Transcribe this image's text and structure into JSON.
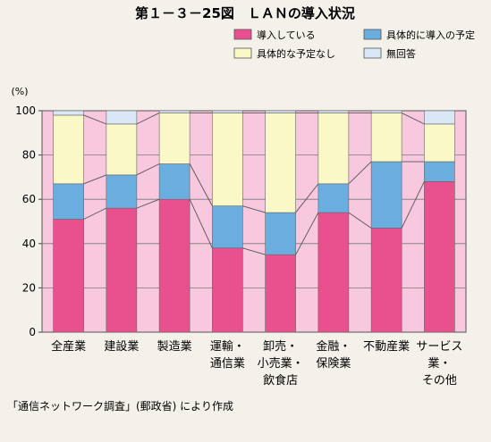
{
  "chart_data": {
    "type": "bar",
    "stacked": true,
    "title": "第１－３－25図　ＬＡＮの導入状況",
    "ylabel": "(%)",
    "ylim": [
      0,
      100
    ],
    "yticks": [
      "0",
      "20",
      "40",
      "60",
      "80",
      "100"
    ],
    "categories": [
      [
        "全産業"
      ],
      [
        "建設業"
      ],
      [
        "製造業"
      ],
      [
        "運輸・",
        "通信業"
      ],
      [
        "卸売・",
        "小売業・",
        "飲食店"
      ],
      [
        "金融・",
        "保険業"
      ],
      [
        "不動産業"
      ],
      [
        "サービス",
        "業・",
        "その他"
      ]
    ],
    "series": [
      {
        "name": "導入している",
        "color": "#e9508e",
        "values": [
          51,
          56,
          60,
          38,
          35,
          54,
          47,
          68
        ]
      },
      {
        "name": "具体的に導入の予定",
        "color": "#6aaee0",
        "values": [
          16,
          15,
          16,
          19,
          19,
          13,
          30,
          9
        ]
      },
      {
        "name": "具体的な予定なし",
        "color": "#fbf8c8",
        "values": [
          31,
          23,
          23,
          42,
          45,
          32,
          22,
          17
        ]
      },
      {
        "name": "無回答",
        "color": "#d9e7f6",
        "values": [
          2,
          6,
          1,
          1,
          1,
          1,
          1,
          6
        ]
      }
    ],
    "background_color": "#f7c8de",
    "legend_position": "top-right",
    "grid": true,
    "source": "「通信ネットワーク調査」(郵政省) により作成"
  }
}
